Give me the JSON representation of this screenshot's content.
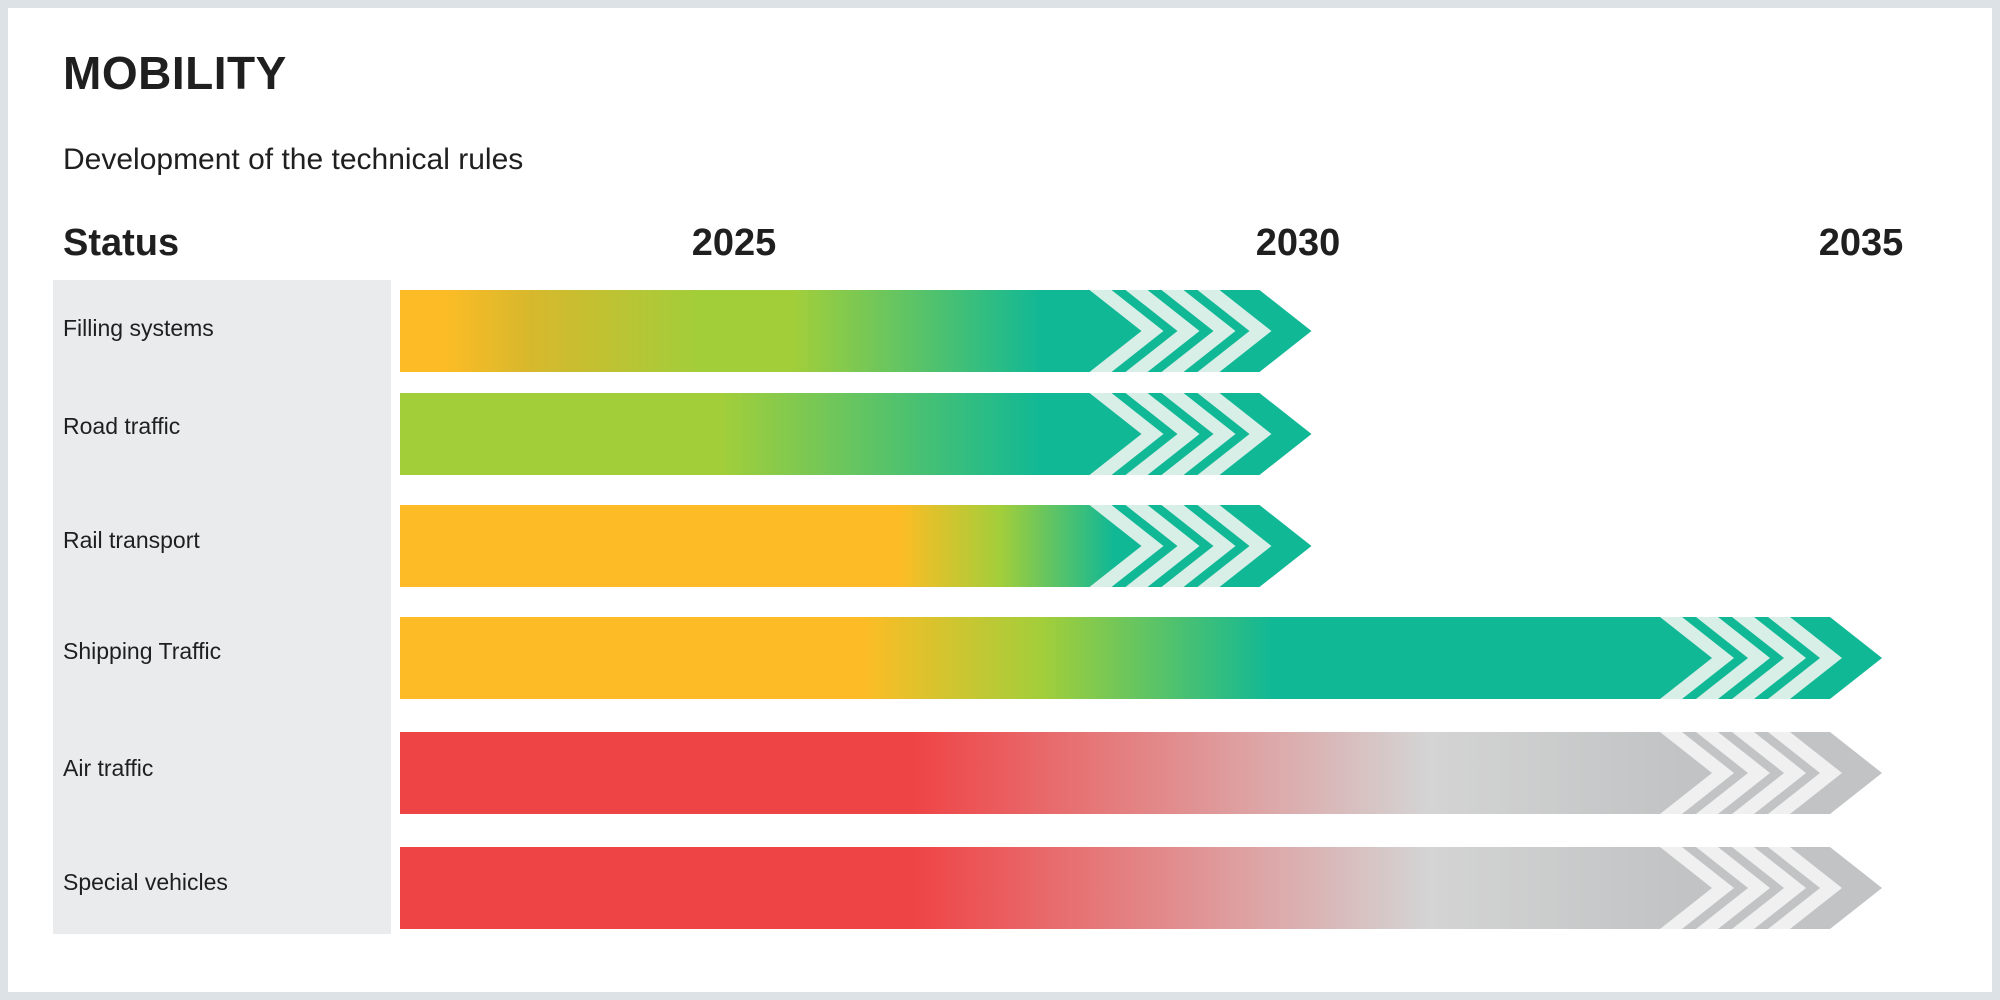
{
  "title": "MOBILITY",
  "subtitle": "Development of the technical rules",
  "status_header": "Status",
  "years": [
    "2025",
    "2030",
    "2035"
  ],
  "colors": {
    "red": "#ef4446",
    "amber": "#fdbc25",
    "lime": "#a2ce3a",
    "teal": "#10b896",
    "grey": "#c1c3c4",
    "panel": "#eaebed"
  },
  "rows": [
    {
      "label": "Filling systems",
      "end_year": 2030,
      "status_progression": [
        "amber",
        "lime",
        "teal"
      ]
    },
    {
      "label": "Road traffic",
      "end_year": 2030,
      "status_progression": [
        "lime",
        "teal"
      ]
    },
    {
      "label": "Rail transport",
      "end_year": 2030,
      "status_progression": [
        "amber",
        "lime",
        "teal"
      ]
    },
    {
      "label": "Shipping Traffic",
      "end_year": 2035,
      "status_progression": [
        "amber",
        "lime",
        "teal"
      ]
    },
    {
      "label": "Air traffic",
      "end_year": 2035,
      "status_progression": [
        "red",
        "grey"
      ]
    },
    {
      "label": "Special vehicles",
      "end_year": 2035,
      "status_progression": [
        "red",
        "grey"
      ]
    }
  ]
}
